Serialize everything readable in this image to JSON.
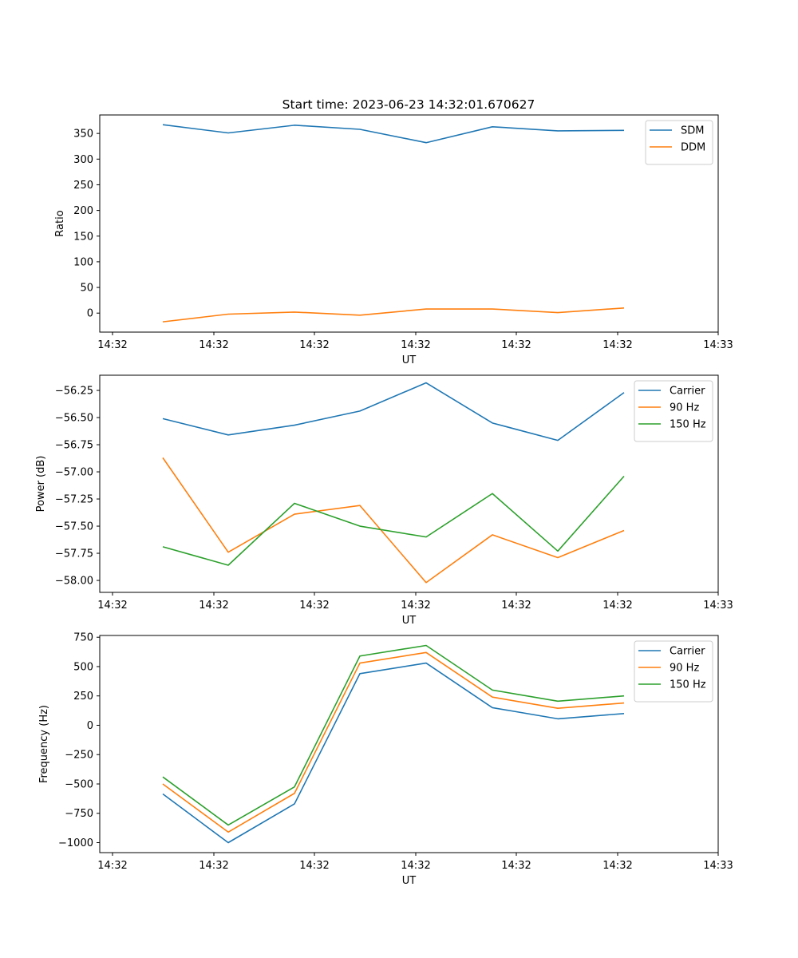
{
  "figure": {
    "title": "Start time: 2023-06-23 14:32:01.670627"
  },
  "chart_data": [
    {
      "type": "line",
      "xlabel": "UT",
      "ylabel": "Ratio",
      "x_tick_labels": [
        "14:32",
        "14:32",
        "14:32",
        "14:32",
        "14:32",
        "14:32",
        "14:32",
        "14:33"
      ],
      "y_ticks": [
        0,
        50,
        100,
        150,
        200,
        250,
        300,
        350
      ],
      "ylim": [
        -37,
        386
      ],
      "x_index": [
        0,
        1,
        2,
        3,
        4,
        5,
        6,
        7
      ],
      "legend": "top-right",
      "grid": false,
      "series": [
        {
          "name": "SDM",
          "color": "#1f77b4",
          "values": [
            367,
            351,
            366,
            358,
            332,
            363,
            355,
            356
          ]
        },
        {
          "name": "DDM",
          "color": "#ff7f0e",
          "values": [
            -17,
            -2,
            2,
            -4,
            8,
            8,
            1,
            10
          ]
        }
      ]
    },
    {
      "type": "line",
      "xlabel": "UT",
      "ylabel": "Power (dB)",
      "x_tick_labels": [
        "14:32",
        "14:32",
        "14:32",
        "14:32",
        "14:32",
        "14:32",
        "14:32",
        "14:33"
      ],
      "y_ticks": [
        -58.0,
        -57.75,
        -57.5,
        -57.25,
        -57.0,
        -56.75,
        -56.5,
        -56.25
      ],
      "y_tick_labels": [
        "−58.00",
        "−57.75",
        "−57.50",
        "−57.25",
        "−57.00",
        "−56.75",
        "−56.50",
        "−56.25"
      ],
      "ylim": [
        -58.11,
        -56.11
      ],
      "x_index": [
        0,
        1,
        2,
        3,
        4,
        5,
        6,
        7
      ],
      "legend": "top-right",
      "grid": false,
      "series": [
        {
          "name": "Carrier",
          "color": "#1f77b4",
          "values": [
            -56.51,
            -56.66,
            -56.57,
            -56.44,
            -56.18,
            -56.55,
            -56.71,
            -56.27
          ]
        },
        {
          "name": "90 Hz",
          "color": "#ff7f0e",
          "values": [
            -56.87,
            -57.74,
            -57.39,
            -57.31,
            -58.02,
            -57.58,
            -57.79,
            -57.54
          ]
        },
        {
          "name": "150 Hz",
          "color": "#2ca02c",
          "values": [
            -57.69,
            -57.86,
            -57.29,
            -57.5,
            -57.6,
            -57.2,
            -57.73,
            -57.04
          ]
        }
      ]
    },
    {
      "type": "line",
      "xlabel": "UT",
      "ylabel": "Frequency (Hz)",
      "x_tick_labels": [
        "14:32",
        "14:32",
        "14:32",
        "14:32",
        "14:32",
        "14:32",
        "14:32",
        "14:33"
      ],
      "y_ticks": [
        -1000,
        -750,
        -500,
        -250,
        0,
        250,
        500,
        750
      ],
      "y_tick_labels": [
        "−1000",
        "−750",
        "−500",
        "−250",
        "0",
        "250",
        "500",
        "750"
      ],
      "ylim": [
        -1085,
        765
      ],
      "x_index": [
        0,
        1,
        2,
        3,
        4,
        5,
        6,
        7
      ],
      "legend": "top-right",
      "grid": false,
      "series": [
        {
          "name": "Carrier",
          "color": "#1f77b4",
          "values": [
            -585,
            -1000,
            -670,
            440,
            530,
            150,
            55,
            100
          ]
        },
        {
          "name": "90 Hz",
          "color": "#ff7f0e",
          "values": [
            -500,
            -910,
            -580,
            530,
            620,
            240,
            145,
            190
          ]
        },
        {
          "name": "150 Hz",
          "color": "#2ca02c",
          "values": [
            -440,
            -850,
            -525,
            590,
            680,
            300,
            205,
            250
          ]
        }
      ]
    }
  ]
}
